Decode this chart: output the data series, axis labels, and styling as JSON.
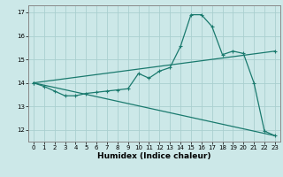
{
  "xlabel": "Humidex (Indice chaleur)",
  "bg_color": "#cce8e8",
  "line_color": "#1a7a6e",
  "grid_color": "#aacfcf",
  "xlim": [
    -0.5,
    23.5
  ],
  "ylim": [
    11.5,
    17.3
  ],
  "yticks": [
    12,
    13,
    14,
    15,
    16,
    17
  ],
  "xticks": [
    0,
    1,
    2,
    3,
    4,
    5,
    6,
    7,
    8,
    9,
    10,
    11,
    12,
    13,
    14,
    15,
    16,
    17,
    18,
    19,
    20,
    21,
    22,
    23
  ],
  "line1_x": [
    0,
    1,
    2,
    3,
    4,
    5,
    6,
    7,
    8,
    9,
    10,
    11,
    12,
    13,
    14,
    15,
    16,
    17,
    18,
    19,
    20,
    21,
    22,
    23
  ],
  "line1_y": [
    14.0,
    13.85,
    13.65,
    13.45,
    13.45,
    13.55,
    13.6,
    13.65,
    13.7,
    13.75,
    14.4,
    14.2,
    14.5,
    14.65,
    15.55,
    16.9,
    16.9,
    16.4,
    15.2,
    15.35,
    15.25,
    14.0,
    11.95,
    11.75
  ],
  "line2_x": [
    0,
    23
  ],
  "line2_y": [
    14.0,
    15.35
  ],
  "line3_x": [
    0,
    23
  ],
  "line3_y": [
    14.0,
    11.75
  ],
  "tick_fontsize": 5.0,
  "xlabel_fontsize": 6.5,
  "spine_color": "#888888",
  "lw": 0.9,
  "marker_size": 2.5
}
